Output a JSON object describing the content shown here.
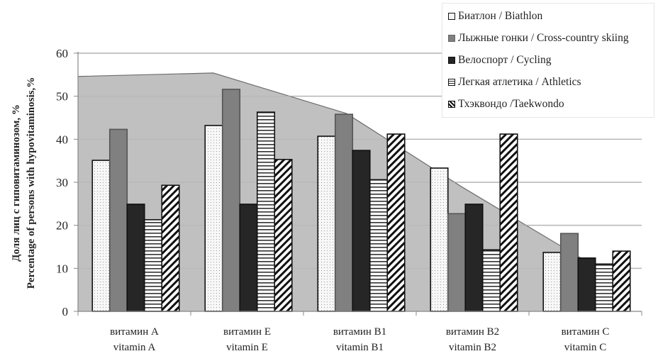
{
  "chart_data": {
    "type": "bar",
    "title": "",
    "xlabel": "",
    "ylabel": [
      "Доля лиц с гиповитаминозом, %",
      "Percentage of persons with hypovitaminosis,%"
    ],
    "ylim": [
      0,
      60
    ],
    "yticks": [
      0,
      10,
      20,
      30,
      40,
      50,
      60
    ],
    "grid": true,
    "legend_position": "top-right",
    "categories": [
      [
        "витамин A",
        "vitamin A"
      ],
      [
        "витамин E",
        "vitamin E"
      ],
      [
        "витамин B1",
        "vitamin B1"
      ],
      [
        "витамин B2",
        "vitamin B2"
      ],
      [
        "витамин C",
        "vitamin C"
      ]
    ],
    "series": [
      {
        "name": "Биатлон / Biathlon",
        "pattern": "dots",
        "values": [
          35.1,
          43.2,
          40.7,
          33.3,
          13.7
        ]
      },
      {
        "name": "Лыжные гонки / Cross-country skiing",
        "pattern": "solid-gray",
        "values": [
          42.3,
          51.6,
          45.8,
          22.7,
          18.1
        ]
      },
      {
        "name": "Велоспорт / Cycling",
        "pattern": "solid-dark",
        "values": [
          24.9,
          24.9,
          37.4,
          24.9,
          12.4
        ]
      },
      {
        "name": "Легкая атлетика / Athletics",
        "pattern": "horizontal-lines",
        "values": [
          21.3,
          46.3,
          30.6,
          14.3,
          11.0
        ]
      },
      {
        "name": "Тхэквондо /Taekwondo",
        "pattern": "diagonal-lines",
        "values": [
          29.3,
          35.3,
          41.2,
          41.2,
          14.0
        ]
      }
    ],
    "background_area": {
      "description": "gray filled area envelope behind bars",
      "values_at_start": 54.6,
      "values": [
        55.0,
        55.4,
        46.0,
        29.0,
        11.0
      ]
    }
  },
  "colors": {
    "area_fill": "#c0c0c0",
    "area_stroke": "#6e6e6e",
    "cross_country": "#808080",
    "cycling": "#262626",
    "gridline": "#bdbdbd",
    "axis": "#888888"
  }
}
